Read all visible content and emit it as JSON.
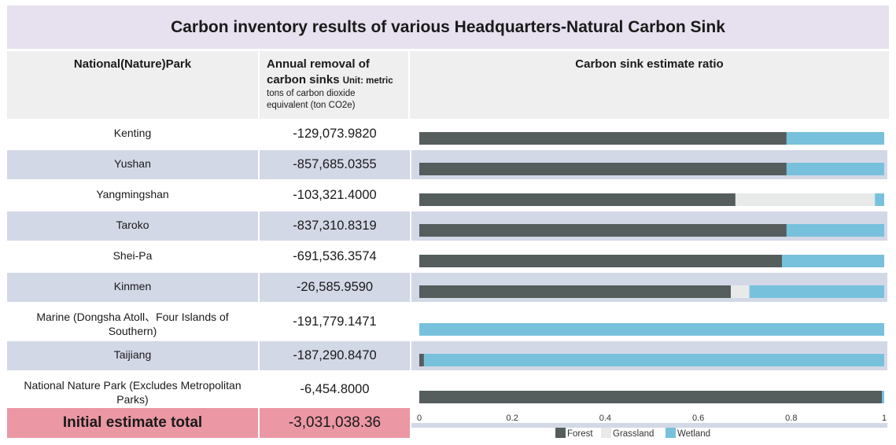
{
  "title": "Carbon inventory results of various Headquarters-Natural Carbon Sink",
  "headers": {
    "park": "National(Nature)Park",
    "removal_main_1": "Annual removal of",
    "removal_main_2": "carbon sinks",
    "removal_unit_inline": "Unit: metric",
    "removal_unit_rest_1": "tons of carbon dioxide",
    "removal_unit_rest_2": "equivalent (ton CO2e)",
    "ratio": "Carbon sink estimate ratio"
  },
  "rows": [
    {
      "park": "Kenting",
      "value": "-129,073.9820"
    },
    {
      "park": "Yushan",
      "value": "-857,685.0355"
    },
    {
      "park": "Yangmingshan",
      "value": "-103,321.4000"
    },
    {
      "park": "Taroko",
      "value": "-837,310.8319"
    },
    {
      "park": "Shei-Pa",
      "value": "-691,536.3574"
    },
    {
      "park": "Kinmen",
      "value": "-26,585.9590"
    },
    {
      "park": "Marine (Dongsha Atoll、Four Islands of Southern)",
      "value": "-191,779.1471"
    },
    {
      "park": "Taijiang",
      "value": "-187,290.8470"
    },
    {
      "park": "National Nature Park (Excludes Metropolitan Parks)",
      "value": "-6,454.8000"
    }
  ],
  "total": {
    "label": "Initial estimate total",
    "value": "-3,031,038.36"
  },
  "colors": {
    "forest": "#555d5d",
    "grassland": "#e8eaea",
    "wetland": "#78c1dc",
    "total_bg": "#eb97a4",
    "band": "#d3d8e7"
  },
  "chart_data": {
    "type": "bar",
    "orientation": "horizontal",
    "stacked": true,
    "categories": [
      "Kenting",
      "Yushan",
      "Yangmingshan",
      "Taroko",
      "Shei-Pa",
      "Kinmen",
      "Marine (Dongsha Atoll、Four Islands of Southern)",
      "Taijiang",
      "National Nature Park (Excludes Metropolitan Parks)"
    ],
    "series": [
      {
        "name": "Forest",
        "color": "#555d5d",
        "values": [
          0.79,
          0.79,
          0.68,
          0.79,
          0.78,
          0.67,
          0.0,
          0.01,
          0.995
        ]
      },
      {
        "name": "Grassland",
        "color": "#e8eaea",
        "values": [
          0.0,
          0.0,
          0.3,
          0.0,
          0.0,
          0.04,
          0.0,
          0.0,
          0.0
        ]
      },
      {
        "name": "Wetland",
        "color": "#78c1dc",
        "values": [
          0.21,
          0.21,
          0.02,
          0.21,
          0.22,
          0.29,
          1.0,
          0.99,
          0.005
        ]
      }
    ],
    "xlim": [
      0,
      1
    ],
    "x_ticks": [
      "0",
      "0.2",
      "0.4",
      "0.6",
      "0.8",
      "1"
    ],
    "legend": {
      "position": "bottom",
      "items": [
        "Forest",
        "Grassland",
        "Wetland"
      ]
    },
    "grid": false
  }
}
